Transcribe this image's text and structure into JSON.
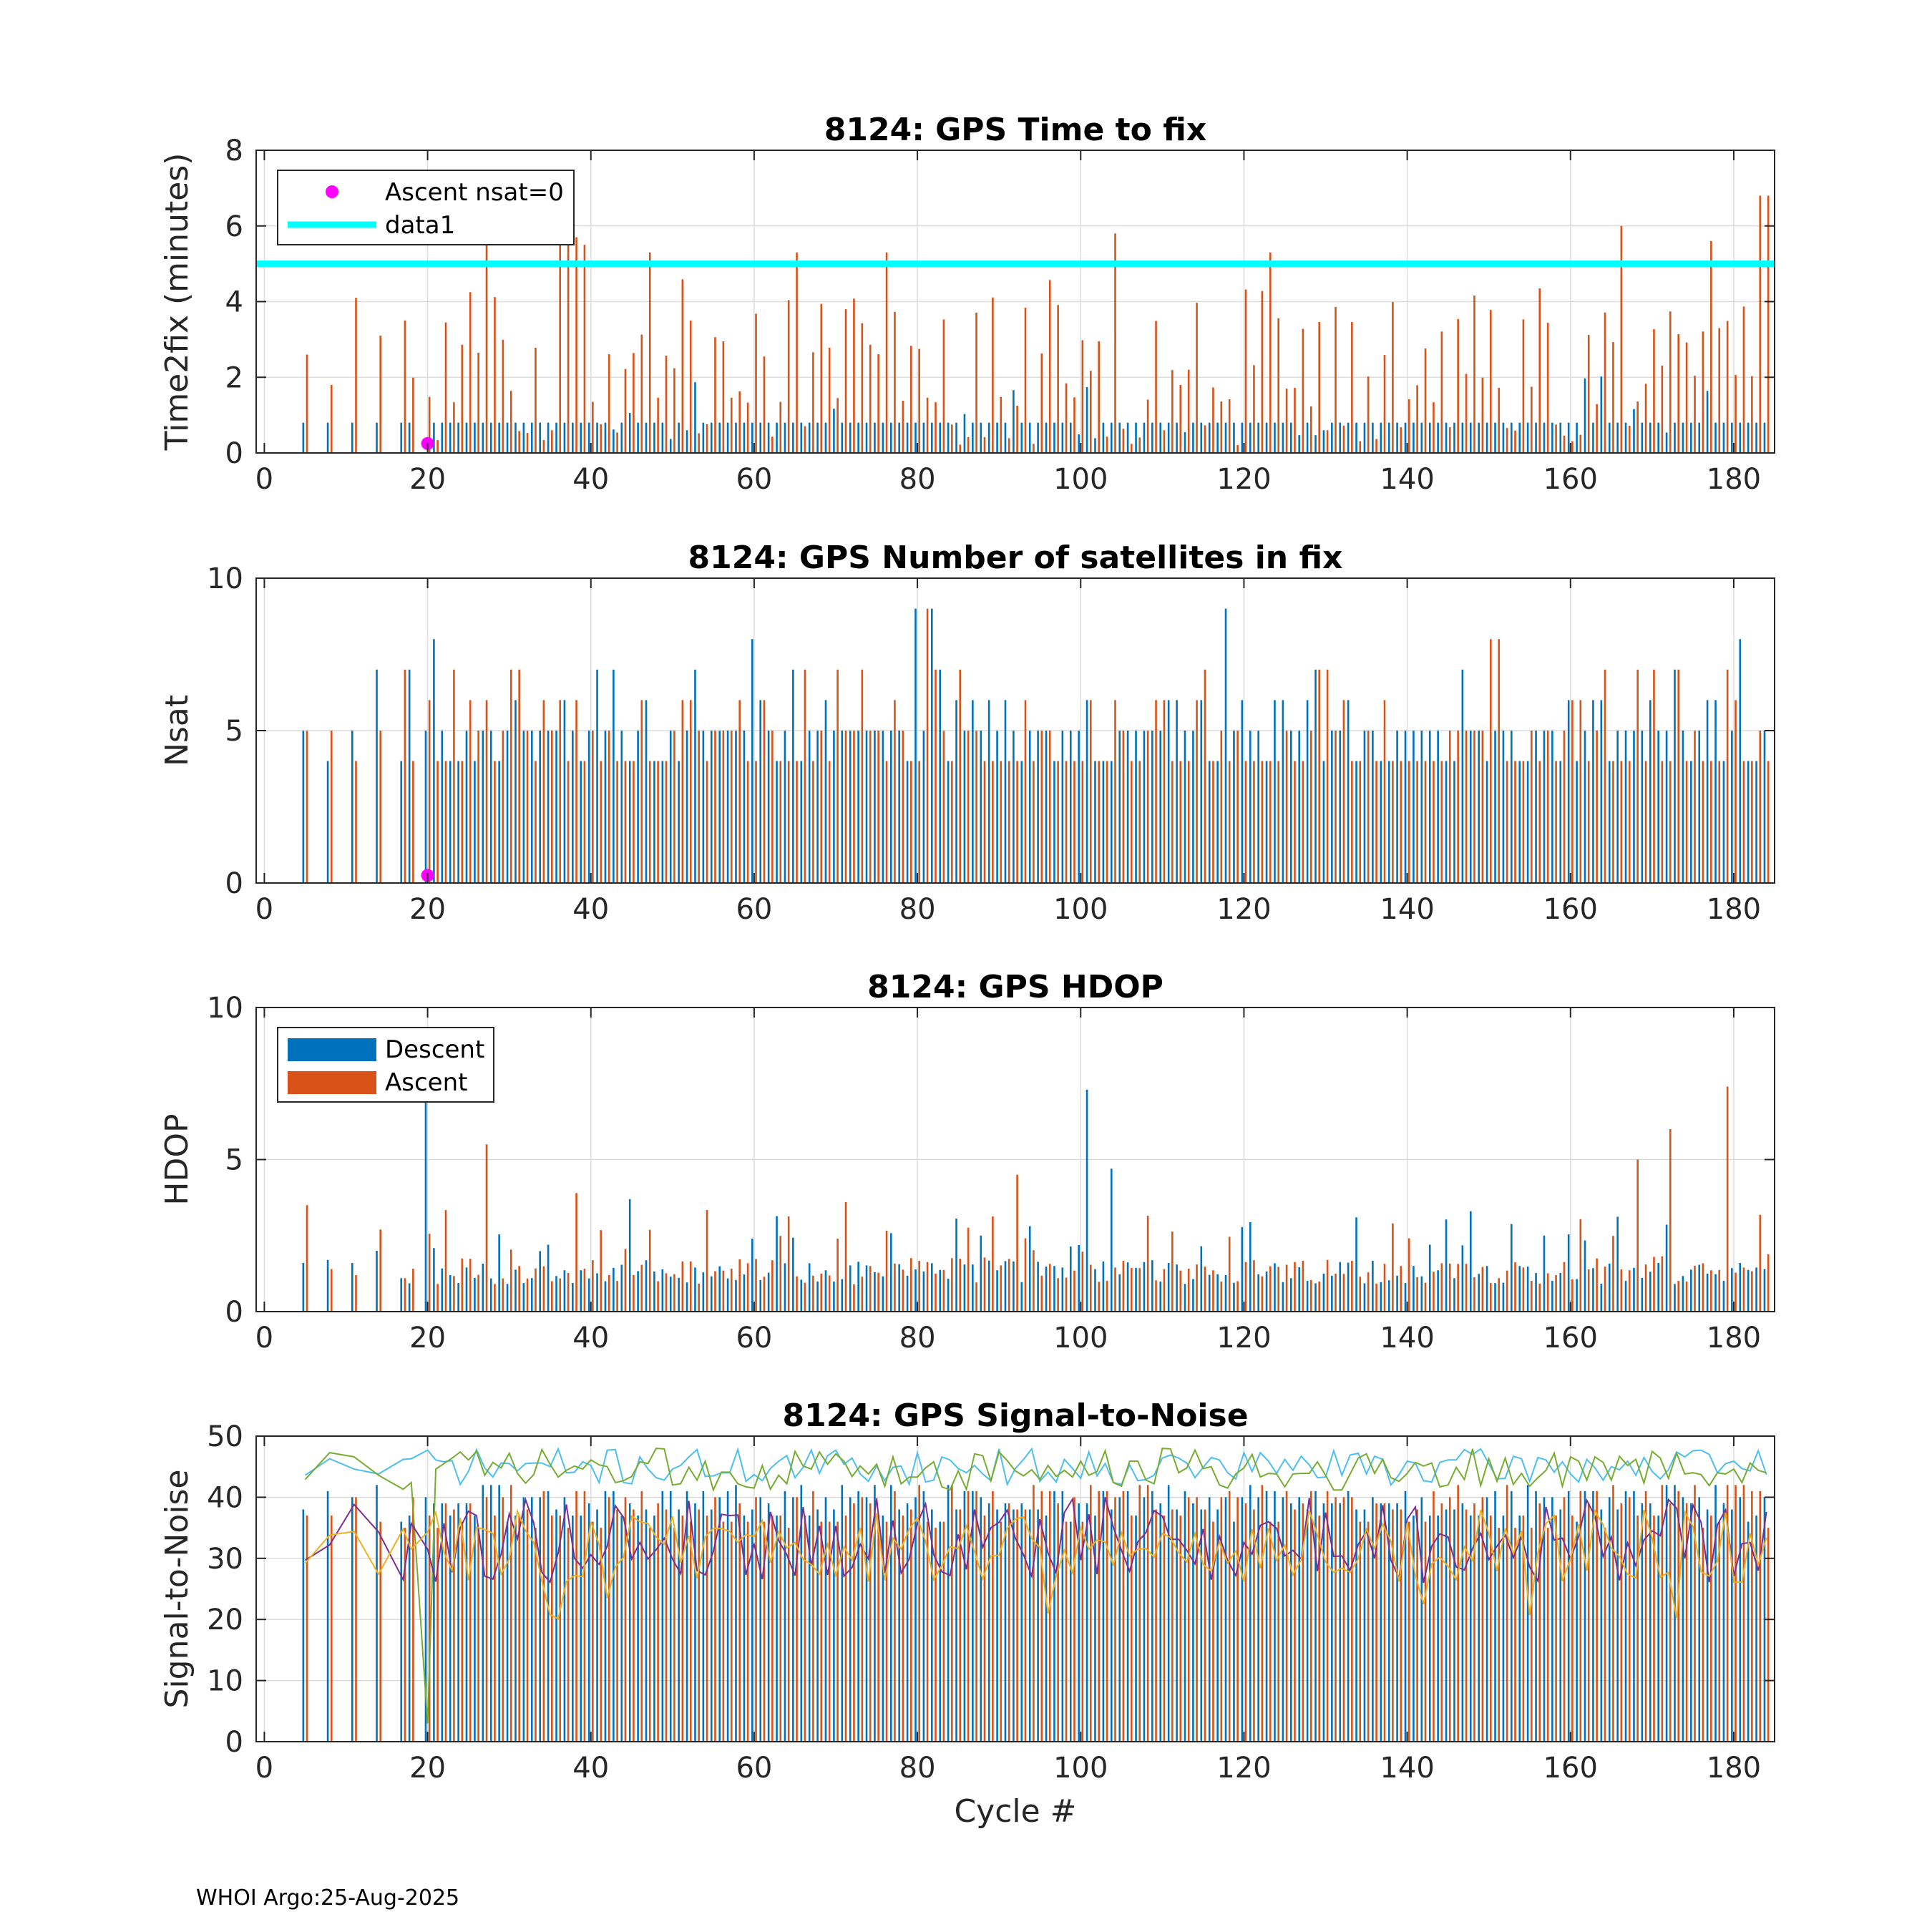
{
  "footer": "WHOI Argo:25-Aug-2025",
  "colors": {
    "descent": "#0072BD",
    "ascent": "#D95319",
    "nsat0": "#FF00FF",
    "data1": "#00FFFF",
    "sn1": "#4DBEEE",
    "sn2": "#77AC30",
    "sn3": "#7E2F8E",
    "sn4": "#EDB120"
  },
  "chart_data": [
    {
      "type": "bar",
      "title": "8124: GPS Time to fix",
      "xlabel": "",
      "ylabel": "Time2fix (minutes)",
      "xlim": [
        -1,
        185
      ],
      "ylim": [
        0,
        8
      ],
      "xticks": [
        "0",
        "20",
        "40",
        "60",
        "80",
        "100",
        "120",
        "140",
        "160",
        "180"
      ],
      "yticks": [
        "0",
        "2",
        "4",
        "6",
        "8"
      ],
      "grid": true,
      "legend": {
        "location": "top-left",
        "entries": [
          "Ascent nsat=0",
          "data1"
        ]
      },
      "reference_line": {
        "name": "data1",
        "y": 5
      },
      "markers": [
        {
          "name": "Ascent nsat=0",
          "x": 20,
          "y": 0.25
        }
      ],
      "series": [
        {
          "name": "Descent",
          "gen": "t2f_desc"
        },
        {
          "name": "Ascent",
          "gen": "t2f_asc",
          "peaks": [
            [
              5,
              2.6
            ],
            [
              8,
              1.8
            ],
            [
              11,
              4.1
            ],
            [
              14,
              3.1
            ],
            [
              17,
              3.5
            ],
            [
              27,
              5.7
            ],
            [
              36,
              5.5
            ],
            [
              37,
              5.7
            ],
            [
              38,
              5.7
            ],
            [
              39,
              5.5
            ],
            [
              47,
              5.3
            ],
            [
              65,
              5.3
            ],
            [
              76,
              5.3
            ],
            [
              104,
              5.8
            ],
            [
              123,
              5.3
            ],
            [
              166,
              6.0
            ],
            [
              177,
              5.6
            ],
            [
              183,
              6.8
            ],
            [
              184,
              6.8
            ]
          ]
        }
      ]
    },
    {
      "type": "bar",
      "title": "8124: GPS Number of satellites in fix",
      "xlabel": "",
      "ylabel": "Nsat",
      "xlim": [
        -1,
        185
      ],
      "ylim": [
        0,
        10
      ],
      "xticks": [
        "0",
        "20",
        "40",
        "60",
        "80",
        "100",
        "120",
        "140",
        "160",
        "180"
      ],
      "yticks": [
        "0",
        "5",
        "10"
      ],
      "grid": true,
      "markers": [
        {
          "name": "Ascent nsat=0",
          "x": 20,
          "y": 0.25
        }
      ],
      "series": [
        {
          "name": "Descent",
          "gen": "nsat_desc",
          "peaks": [
            [
              5,
              5
            ],
            [
              8,
              4
            ],
            [
              11,
              5
            ],
            [
              14,
              7
            ],
            [
              17,
              4
            ],
            [
              18,
              7
            ],
            [
              21,
              8
            ],
            [
              60,
              8
            ],
            [
              80,
              9
            ],
            [
              82,
              9
            ],
            [
              118,
              9
            ],
            [
              181,
              8
            ]
          ]
        },
        {
          "name": "Ascent",
          "gen": "nsat_asc",
          "peaks": [
            [
              5,
              5
            ],
            [
              8,
              5
            ],
            [
              11,
              4
            ],
            [
              14,
              5
            ],
            [
              17,
              7
            ],
            [
              18,
              4
            ],
            [
              20,
              6
            ],
            [
              81,
              9
            ],
            [
              150,
              8
            ],
            [
              151,
              8
            ],
            [
              179,
              7
            ]
          ]
        }
      ]
    },
    {
      "type": "bar",
      "title": "8124: GPS HDOP",
      "xlabel": "",
      "ylabel": "HDOP",
      "xlim": [
        -1,
        185
      ],
      "ylim": [
        0,
        10
      ],
      "xticks": [
        "0",
        "20",
        "40",
        "60",
        "80",
        "100",
        "120",
        "140",
        "160",
        "180"
      ],
      "yticks": [
        "0",
        "5",
        "10"
      ],
      "grid": true,
      "legend": {
        "location": "top-left",
        "entries": [
          "Descent",
          "Ascent"
        ]
      },
      "series": [
        {
          "name": "Descent",
          "gen": "hdop_desc",
          "peaks": [
            [
              5,
              1.6
            ],
            [
              8,
              1.7
            ],
            [
              11,
              1.6
            ],
            [
              14,
              2.0
            ],
            [
              17,
              1.1
            ],
            [
              20,
              7.5
            ],
            [
              45,
              3.7
            ],
            [
              101,
              7.3
            ],
            [
              104,
              4.7
            ],
            [
              134,
              3.1
            ],
            [
              148,
              3.3
            ]
          ]
        },
        {
          "name": "Ascent",
          "gen": "hdop_asc",
          "peaks": [
            [
              5,
              3.5
            ],
            [
              8,
              1.4
            ],
            [
              11,
              1.2
            ],
            [
              14,
              2.7
            ],
            [
              17,
              1.1
            ],
            [
              27,
              5.5
            ],
            [
              38,
              3.9
            ],
            [
              71,
              3.6
            ],
            [
              92,
              4.5
            ],
            [
              168,
              5.0
            ],
            [
              172,
              6.0
            ],
            [
              179,
              7.4
            ]
          ]
        }
      ]
    },
    {
      "type": "bar",
      "title": "8124: GPS Signal-to-Noise",
      "xlabel": "Cycle #",
      "ylabel": "Signal-to-Noise",
      "xlim": [
        -1,
        185
      ],
      "ylim": [
        0,
        50
      ],
      "xticks": [
        "0",
        "20",
        "40",
        "60",
        "80",
        "100",
        "120",
        "140",
        "160",
        "180"
      ],
      "yticks": [
        "0",
        "10",
        "20",
        "30",
        "40",
        "50"
      ],
      "grid": true,
      "series": [
        {
          "name": "Descent",
          "gen": "sn_desc"
        },
        {
          "name": "Ascent",
          "gen": "sn_asc"
        },
        {
          "name": "line1",
          "kind": "line",
          "gen": "sn_line1",
          "color_key": "sn1"
        },
        {
          "name": "line2",
          "kind": "line",
          "gen": "sn_line2",
          "color_key": "sn2"
        },
        {
          "name": "line3",
          "kind": "line",
          "gen": "sn_line3",
          "color_key": "sn3"
        },
        {
          "name": "line4",
          "kind": "line",
          "gen": "sn_line4",
          "color_key": "sn4"
        }
      ]
    }
  ]
}
